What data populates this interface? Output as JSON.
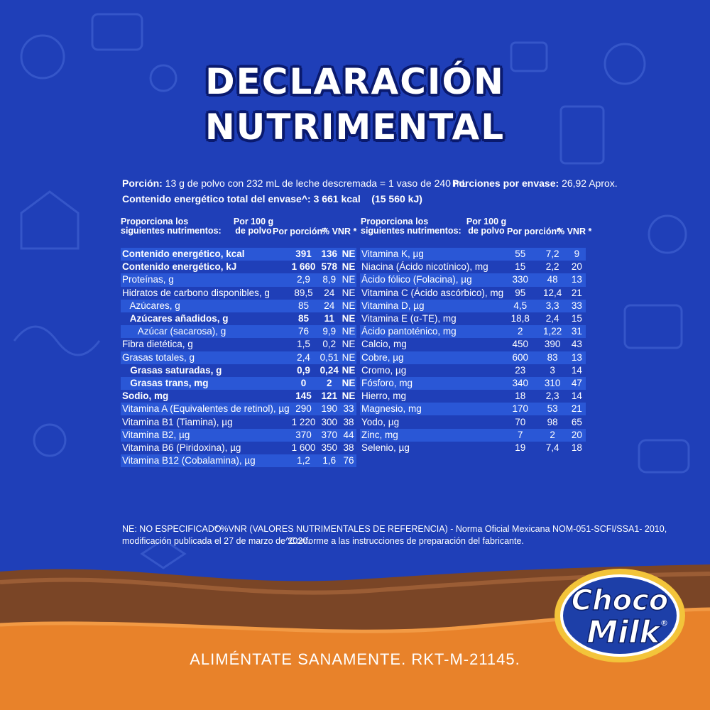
{
  "title": {
    "line1": "DECLARACIÓN",
    "line2": "NUTRIMENTAL"
  },
  "portion": {
    "label": "Porción:",
    "text": "13 g de polvo con 232 mL de leche descremada = 1 vaso de 240 mL",
    "servings_label": "Porciones por envase:",
    "servings_value": "26,92 Aprox.",
    "energy_label": "Contenido energético total del envase^:",
    "energy_value": "3 661 kcal    (15 560 kJ)"
  },
  "headers": {
    "nutrient": "Proporciona los\nsiguientes nutrimentos:",
    "per100": "Por 100 g\nde polvo",
    "per_portion": "Por porción^",
    "vnr": "% VNR *"
  },
  "left_rows": [
    {
      "name": "Contenido energético, kcal",
      "p100": "391",
      "pp": "136",
      "vnr": "NE",
      "bold": true
    },
    {
      "name": "Contenido energético, kJ",
      "p100": "1 660",
      "pp": "578",
      "vnr": "NE",
      "bold": true
    },
    {
      "name": "Proteínas, g",
      "p100": "2,9",
      "pp": "8,9",
      "vnr": "NE"
    },
    {
      "name": "Hidratos de carbono disponibles, g",
      "p100": "89,5",
      "pp": "24",
      "vnr": "NE"
    },
    {
      "name": "   Azúcares, g",
      "p100": "85",
      "pp": "24",
      "vnr": "NE"
    },
    {
      "name": "   Azúcares añadidos, g",
      "p100": "85",
      "pp": "11",
      "vnr": "NE",
      "bold": true
    },
    {
      "name": "      Azúcar (sacarosa), g",
      "p100": "76",
      "pp": "9,9",
      "vnr": "NE"
    },
    {
      "name": "Fibra dietética, g",
      "p100": "1,5",
      "pp": "0,2",
      "vnr": "NE"
    },
    {
      "name": "Grasas totales, g",
      "p100": "2,4",
      "pp": "0,51",
      "vnr": "NE"
    },
    {
      "name": "   Grasas saturadas, g",
      "p100": "0,9",
      "pp": "0,24",
      "vnr": "NE",
      "bold": true
    },
    {
      "name": "   Grasas trans, mg",
      "p100": "0",
      "pp": "2",
      "vnr": "NE",
      "bold": true
    },
    {
      "name": "Sodio, mg",
      "p100": "145",
      "pp": "121",
      "vnr": "NE",
      "bold": true
    },
    {
      "name": "Vitamina A (Equivalentes de retinol), µg",
      "p100": "290",
      "pp": "190",
      "vnr": "33"
    },
    {
      "name": "Vitamina B1 (Tiamina), µg",
      "p100": "1 220",
      "pp": "300",
      "vnr": "38"
    },
    {
      "name": "Vitamina B2, µg",
      "p100": "370",
      "pp": "370",
      "vnr": "44"
    },
    {
      "name": "Vitamina B6 (Piridoxina), µg",
      "p100": "1 600",
      "pp": "350",
      "vnr": "38"
    },
    {
      "name": "Vitamina B12 (Cobalamina), µg",
      "p100": "1,2",
      "pp": "1,6",
      "vnr": "76"
    }
  ],
  "right_rows": [
    {
      "name": "Vitamina K, µg",
      "p100": "55",
      "pp": "7,2",
      "vnr": "9"
    },
    {
      "name": "Niacina (Ácido nicotínico), mg",
      "p100": "15",
      "pp": "2,2",
      "vnr": "20"
    },
    {
      "name": "Ácido fólico (Folacina), µg",
      "p100": "330",
      "pp": "48",
      "vnr": "13"
    },
    {
      "name": "Vitamina C (Ácido ascórbico), mg",
      "p100": "95",
      "pp": "12,4",
      "vnr": "21"
    },
    {
      "name": "Vitamina D, µg",
      "p100": "4,5",
      "pp": "3,3",
      "vnr": "33"
    },
    {
      "name": "Vitamina E (α-TE), mg",
      "p100": "18,8",
      "pp": "2,4",
      "vnr": "15"
    },
    {
      "name": "Ácido pantoténico, mg",
      "p100": "2",
      "pp": "1,22",
      "vnr": "31"
    },
    {
      "name": "Calcio, mg",
      "p100": "450",
      "pp": "390",
      "vnr": "43"
    },
    {
      "name": "Cobre, µg",
      "p100": "600",
      "pp": "83",
      "vnr": "13"
    },
    {
      "name": "Cromo, µg",
      "p100": "23",
      "pp": "3",
      "vnr": "14"
    },
    {
      "name": "Fósforo, mg",
      "p100": "340",
      "pp": "310",
      "vnr": "47"
    },
    {
      "name": "Hierro, mg",
      "p100": "18",
      "pp": "2,3",
      "vnr": "14"
    },
    {
      "name": "Magnesio, mg",
      "p100": "170",
      "pp": "53",
      "vnr": "21"
    },
    {
      "name": "Yodo, µg",
      "p100": "70",
      "pp": "98",
      "vnr": "65"
    },
    {
      "name": "Zinc, mg",
      "p100": "7",
      "pp": "2",
      "vnr": "20"
    },
    {
      "name": "Selenio, µg",
      "p100": "19",
      "pp": "7,4",
      "vnr": "18"
    }
  ],
  "footnotes": {
    "ne": "NE: NO ESPECIFICADO",
    "vnr": "* %VNR (VALORES NUTRIMENTALES DE REFERENCIA) - Norma Oficial Mexicana NOM-051-SCFI/SSA1- 2010,",
    "mod": "modificación publicada el 27 de marzo de 2020.",
    "prep": "^Conforme a las instrucciones de preparación del fabricante."
  },
  "logo": {
    "line1": "Choco",
    "line2": "Milk",
    "mark": "®"
  },
  "slogan": "ALIMÉNTATE SANAMENTE. RKT-M-21145.",
  "colors": {
    "background": "#1f3fb8",
    "stripe": "#2a57d6",
    "chocolate": "#7a4526",
    "orange": "#e8822a"
  }
}
